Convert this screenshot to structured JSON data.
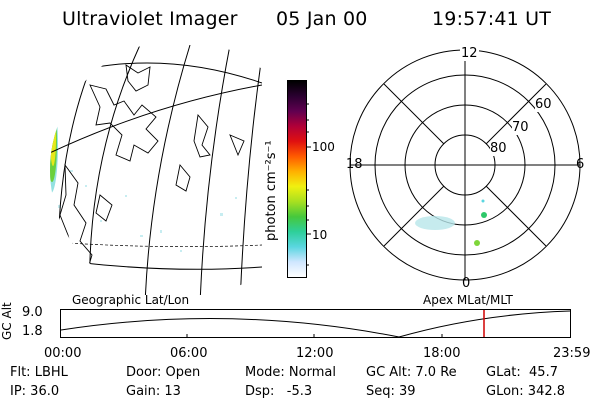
{
  "header": {
    "title": "Ultraviolet Imager",
    "date": "05 Jan 00",
    "time": "19:57:41 UT"
  },
  "colorbar": {
    "unit_label": "photon cm⁻²s⁻¹",
    "tick_100": "100",
    "tick_10": "10",
    "colors": [
      "#ffffff",
      "#cfe6ff",
      "#5ad6e0",
      "#2ecf9a",
      "#46c83c",
      "#a8e020",
      "#f0f010",
      "#ffb000",
      "#ff5a00",
      "#e01010",
      "#b00038",
      "#600050",
      "#2a0030",
      "#000000"
    ]
  },
  "panels": {
    "left_caption": "Geographic Lat/Lon",
    "right_caption": "Apex MLat/MLT"
  },
  "polar": {
    "mlt_top": "12",
    "mlt_right": "6",
    "mlt_bottom": "0",
    "mlt_left": "18",
    "lat_60": "60",
    "lat_70": "70",
    "lat_80": "80"
  },
  "timeline": {
    "axis_title": "GC Alt",
    "y_top": "9.0",
    "y_bottom": "1.8",
    "ticks": [
      "00:00",
      "06:00",
      "12:00",
      "18:00",
      "23:59"
    ],
    "marker_color": "#d00000"
  },
  "info": {
    "flt": "Flt: LBHL",
    "ip": "IP: 36.0",
    "door": "Door: Open",
    "gain": "Gain: 13",
    "mode": "Mode: Normal",
    "dsp": "Dsp:   -5.3",
    "gcalt": "GC Alt: 7.0 Re",
    "seq": "Seq: 39",
    "glat": "GLat:  45.7",
    "glon": "GLon: 342.8"
  }
}
